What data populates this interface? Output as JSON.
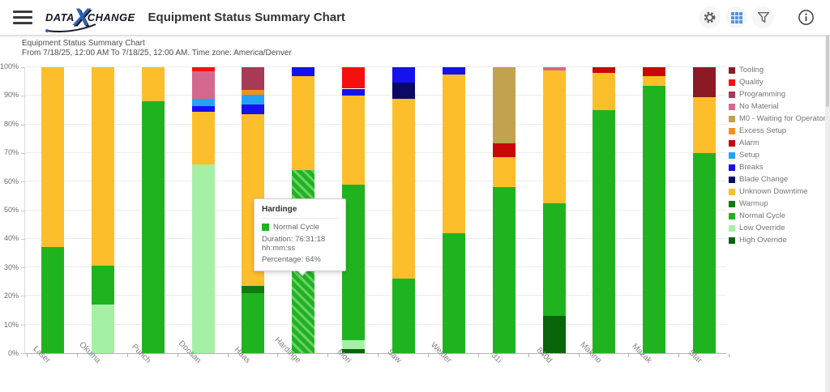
{
  "app_bar": {
    "logo": {
      "data": "DATA",
      "x": "X",
      "change": "CHANGE"
    },
    "title": "Equipment Status Summary Chart"
  },
  "info_panel": {
    "title": "Equipment Status Summary Chart",
    "subtitle": "From 7/18/25, 12:00 AM To 7/18/25, 12:00 AM. Time zone: America/Denver"
  },
  "chart_data": {
    "type": "bar",
    "subtype": "stacked-percent",
    "grid": true,
    "legend_position": "right",
    "ylim": [
      0,
      100
    ],
    "ytick_step": 10,
    "ytick_suffix": "%",
    "statuses": [
      {
        "name": "Tooling",
        "color": "#8B1A24"
      },
      {
        "name": "Quality",
        "color": "#F50F0F"
      },
      {
        "name": "Programming",
        "color": "#A93A55"
      },
      {
        "name": "No Material",
        "color": "#D4678F"
      },
      {
        "name": "M0 - Waiting for Operator",
        "color": "#C2A14F"
      },
      {
        "name": "Excess Setup",
        "color": "#F78F1E"
      },
      {
        "name": "Alarm",
        "color": "#C90707"
      },
      {
        "name": "Setup",
        "color": "#23A3F5"
      },
      {
        "name": "Breaks",
        "color": "#1512EE"
      },
      {
        "name": "Blade Change",
        "color": "#0A0A66"
      },
      {
        "name": "Unknown Downtime",
        "color": "#FDBE2C"
      },
      {
        "name": "Warmup",
        "color": "#117B11"
      },
      {
        "name": "Normal Cycle",
        "color": "#20B320"
      },
      {
        "name": "Low Override",
        "color": "#A5F0A5"
      },
      {
        "name": "High Override",
        "color": "#0A640A"
      }
    ],
    "categories": [
      "Laser",
      "Okuma",
      "Punch",
      "Doosan",
      "Haas",
      "Hardinge",
      "Mori",
      "Saw",
      "Welder",
      "31i",
      "840d",
      "Makino",
      "Mazak",
      "Star"
    ],
    "bars": [
      {
        "category": "Laser",
        "segments": [
          {
            "status": "Normal Cycle",
            "value": 37
          },
          {
            "status": "Unknown Downtime",
            "value": 63
          }
        ]
      },
      {
        "category": "Okuma",
        "segments": [
          {
            "status": "Low Override",
            "value": 17
          },
          {
            "status": "Normal Cycle",
            "value": 13.5
          },
          {
            "status": "Unknown Downtime",
            "value": 69.5
          }
        ]
      },
      {
        "category": "Punch",
        "segments": [
          {
            "status": "Normal Cycle",
            "value": 88
          },
          {
            "status": "Unknown Downtime",
            "value": 12
          }
        ]
      },
      {
        "category": "Doosan",
        "segments": [
          {
            "status": "Low Override",
            "value": 66
          },
          {
            "status": "Unknown Downtime",
            "value": 18.5
          },
          {
            "status": "Breaks",
            "value": 2
          },
          {
            "status": "Setup",
            "value": 2.5
          },
          {
            "status": "No Material",
            "value": 9.5
          },
          {
            "status": "Quality",
            "value": 1.5
          }
        ]
      },
      {
        "category": "Haas",
        "segments": [
          {
            "status": "Normal Cycle",
            "value": 21
          },
          {
            "status": "Warmup",
            "value": 2.5
          },
          {
            "status": "Unknown Downtime",
            "value": 60
          },
          {
            "status": "Breaks",
            "value": 3.5
          },
          {
            "status": "Setup",
            "value": 3.5
          },
          {
            "status": "Excess Setup",
            "value": 1.5
          },
          {
            "status": "Programming",
            "value": 8
          }
        ]
      },
      {
        "category": "Hardinge",
        "segments": [
          {
            "status": "Normal Cycle",
            "value": 64,
            "highlighted": true
          },
          {
            "status": "Unknown Downtime",
            "value": 33
          },
          {
            "status": "Breaks",
            "value": 3
          }
        ]
      },
      {
        "category": "Mori",
        "segments": [
          {
            "status": "High Override",
            "value": 1.5
          },
          {
            "status": "Low Override",
            "value": 3
          },
          {
            "status": "Normal Cycle",
            "value": 54.5
          },
          {
            "status": "Unknown Downtime",
            "value": 31
          },
          {
            "status": "Breaks",
            "value": 2.5
          },
          {
            "status": "Quality",
            "value": 7.5
          }
        ]
      },
      {
        "category": "Saw",
        "segments": [
          {
            "status": "Normal Cycle",
            "value": 26
          },
          {
            "status": "Unknown Downtime",
            "value": 63
          },
          {
            "status": "Blade Change",
            "value": 5.5
          },
          {
            "status": "Breaks",
            "value": 5.5
          }
        ]
      },
      {
        "category": "Welder",
        "segments": [
          {
            "status": "Normal Cycle",
            "value": 42
          },
          {
            "status": "Unknown Downtime",
            "value": 55.5
          },
          {
            "status": "Breaks",
            "value": 2.5
          }
        ]
      },
      {
        "category": "31i",
        "segments": [
          {
            "status": "Normal Cycle",
            "value": 58
          },
          {
            "status": "Unknown Downtime",
            "value": 10.5
          },
          {
            "status": "Alarm",
            "value": 5
          },
          {
            "status": "M0 - Waiting for Operator",
            "value": 26.5
          }
        ]
      },
      {
        "category": "840d",
        "segments": [
          {
            "status": "High Override",
            "value": 13
          },
          {
            "status": "Normal Cycle",
            "value": 39.5
          },
          {
            "status": "Unknown Downtime",
            "value": 46.5
          },
          {
            "status": "No Material",
            "value": 1
          }
        ]
      },
      {
        "category": "Makino",
        "segments": [
          {
            "status": "Normal Cycle",
            "value": 85
          },
          {
            "status": "Unknown Downtime",
            "value": 13
          },
          {
            "status": "Alarm",
            "value": 2
          }
        ]
      },
      {
        "category": "Mazak",
        "segments": [
          {
            "status": "Normal Cycle",
            "value": 93.5
          },
          {
            "status": "Unknown Downtime",
            "value": 3.5
          },
          {
            "status": "Alarm",
            "value": 3
          }
        ]
      },
      {
        "category": "Star",
        "segments": [
          {
            "status": "Normal Cycle",
            "value": 70
          },
          {
            "status": "Unknown Downtime",
            "value": 19.5
          },
          {
            "status": "Tooling",
            "value": 10.5
          }
        ]
      }
    ]
  },
  "tooltip": {
    "title": "Hardinge",
    "status": "Normal Cycle",
    "status_color": "#20B320",
    "duration": "Duration: 76:31:18 hh:mm:ss",
    "percentage": "Percentage: 64%"
  }
}
